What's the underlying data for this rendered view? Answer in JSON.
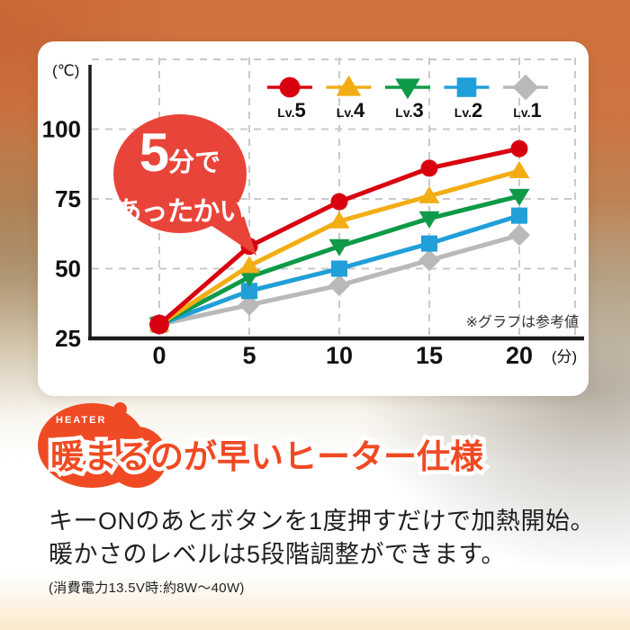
{
  "colors": {
    "background_top": "#d0713d",
    "background_bottom_cream": "#fbe9cd",
    "card": "#ffffff",
    "bubble_red": "#e9443a",
    "accent_orange": "#ef4a23",
    "title_orange": "#f04a23",
    "axis": "#1a1a1a",
    "grid": "#c9c9c9",
    "text": "#1f1f1f"
  },
  "chart_data": {
    "type": "line",
    "x": [
      0,
      5,
      10,
      15,
      20
    ],
    "xlabel": "(分)",
    "ylabel": "(℃)",
    "yticks": [
      25,
      50,
      75,
      100
    ],
    "ylim": [
      25,
      125
    ],
    "grid": true,
    "legend_position": "top-right",
    "annotation": "※グラフは参考値",
    "series": [
      {
        "name": "Lv.5",
        "color": "#d8000f",
        "marker": "circle",
        "values": [
          30,
          58,
          74,
          86,
          93
        ]
      },
      {
        "name": "Lv.4",
        "color": "#f3ad14",
        "marker": "triangle-up",
        "values": [
          30,
          51,
          67,
          76,
          85
        ]
      },
      {
        "name": "Lv.3",
        "color": "#0f9a47",
        "marker": "triangle-down",
        "values": [
          30,
          47,
          58,
          68,
          76
        ]
      },
      {
        "name": "Lv.2",
        "color": "#209fd9",
        "marker": "square",
        "values": [
          30,
          42,
          50,
          59,
          69
        ]
      },
      {
        "name": "Lv.1",
        "color": "#b9b9b9",
        "marker": "diamond",
        "values": [
          30,
          37,
          44,
          53,
          62
        ]
      }
    ]
  },
  "bubble": {
    "big": "5",
    "small": "分で",
    "line2": "あったかい"
  },
  "heading": {
    "badge": "HEATER",
    "title": "暖まるのが早いヒーター仕様"
  },
  "body": {
    "line1": "キーONのあとボタンを1度押すだけで加熱開始。",
    "line2": "暖かさのレベルは5段階調整ができます。",
    "note": "(消費電力13.5V時:約8W〜40W)"
  }
}
